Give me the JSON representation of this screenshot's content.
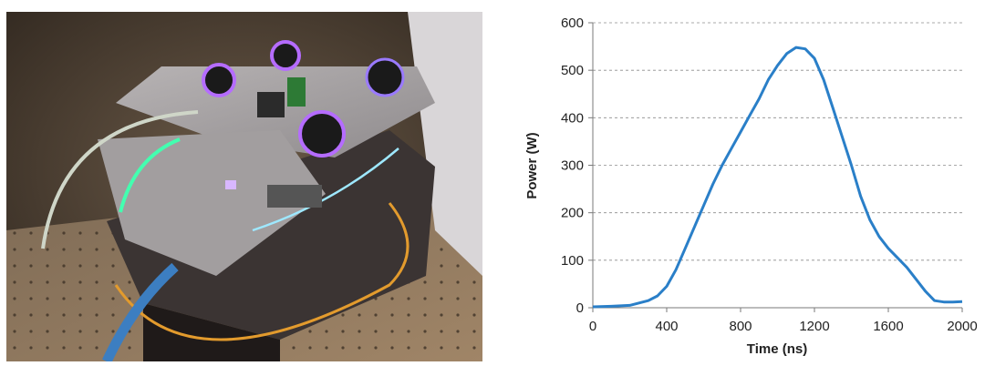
{
  "photo": {
    "subject": "optical-amplifier-breadboard"
  },
  "chart_data": {
    "type": "line",
    "title": "",
    "xlabel": "Time (ns)",
    "ylabel": "Power (W)",
    "xlim": [
      0,
      2000
    ],
    "ylim": [
      0,
      600
    ],
    "xticks": [
      "0",
      "400",
      "800",
      "1200",
      "1600",
      "2000"
    ],
    "yticks": [
      "0",
      "100",
      "200",
      "300",
      "400",
      "500",
      "600"
    ],
    "grid": "horizontal-dashed",
    "legend": "none",
    "series_color": "#2a7fc8",
    "series": [
      {
        "x": [
          0,
          100,
          200,
          300,
          350,
          400,
          450,
          500,
          550,
          600,
          650,
          700,
          750,
          800,
          850,
          900,
          950,
          1000,
          1050,
          1100,
          1150,
          1200,
          1250,
          1300,
          1350,
          1400,
          1450,
          1500,
          1550,
          1600,
          1650,
          1700,
          1750,
          1800,
          1850,
          1900,
          1950,
          2000
        ],
        "y": [
          2,
          3,
          5,
          15,
          25,
          45,
          80,
          125,
          170,
          215,
          260,
          300,
          335,
          370,
          405,
          440,
          480,
          510,
          535,
          548,
          545,
          525,
          480,
          420,
          360,
          300,
          235,
          185,
          150,
          125,
          105,
          85,
          60,
          35,
          15,
          12,
          12,
          13
        ]
      }
    ]
  }
}
